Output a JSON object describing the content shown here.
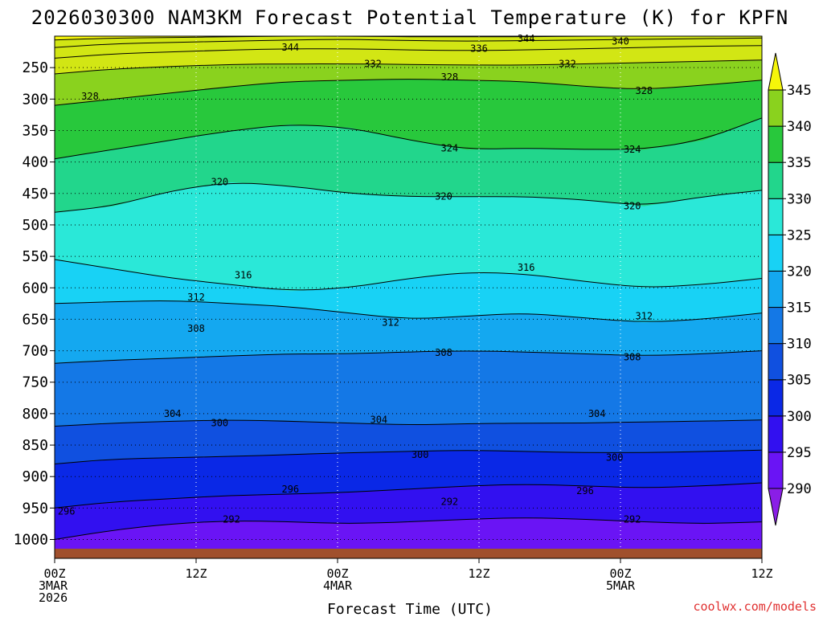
{
  "chart_data": {
    "type": "heatmap",
    "title": "2026030300 NAM3KM Forecast Potential Temperature (K) for KPFN",
    "xlabel": "Forecast Time (UTC)",
    "ylabel": "",
    "credit": "coolwx.com/models",
    "x_ticks": [
      {
        "hour": 0,
        "lines": [
          "00Z",
          "3MAR",
          "2026"
        ]
      },
      {
        "hour": 12,
        "lines": [
          "12Z"
        ]
      },
      {
        "hour": 24,
        "lines": [
          "00Z",
          "4MAR"
        ]
      },
      {
        "hour": 36,
        "lines": [
          "12Z"
        ]
      },
      {
        "hour": 48,
        "lines": [
          "00Z",
          "5MAR"
        ]
      },
      {
        "hour": 60,
        "lines": [
          "12Z"
        ]
      }
    ],
    "xlim": [
      0,
      60
    ],
    "y_ticks": [
      250,
      300,
      350,
      400,
      450,
      500,
      550,
      600,
      650,
      700,
      750,
      800,
      850,
      900,
      950,
      1000
    ],
    "ylim": [
      1030,
      200
    ],
    "colorbar": {
      "levels": [
        290,
        295,
        300,
        305,
        310,
        315,
        320,
        325,
        330,
        335,
        340,
        345
      ],
      "colors": [
        "#8a1ee6",
        "#6a14f5",
        "#3210f0",
        "#0a28e6",
        "#1050e0",
        "#1478e6",
        "#14a8f0",
        "#18d2f5",
        "#2ae8d8",
        "#22d68c",
        "#28c83c",
        "#8ad21e",
        "#d2e614",
        "#f5f50a"
      ],
      "labels": [
        "290",
        "295",
        "300",
        "305",
        "310",
        "315",
        "320",
        "325",
        "330",
        "335",
        "340",
        "345"
      ]
    },
    "series": [
      {
        "name": "292",
        "values": [
          1000,
          985,
          975,
          970,
          972,
          975,
          972,
          968,
          965,
          968,
          972,
          975,
          972
        ]
      },
      {
        "name": "296",
        "values": [
          950,
          940,
          935,
          930,
          928,
          925,
          920,
          915,
          912,
          915,
          918,
          915,
          910
        ]
      },
      {
        "name": "300",
        "values": [
          880,
          872,
          870,
          868,
          865,
          862,
          860,
          858,
          860,
          862,
          862,
          860,
          858
        ]
      },
      {
        "name": "304",
        "values": [
          820,
          815,
          812,
          810,
          812,
          815,
          818,
          816,
          815,
          815,
          813,
          812,
          810
        ]
      },
      {
        "name": "308",
        "values": [
          720,
          715,
          712,
          708,
          705,
          705,
          702,
          700,
          702,
          705,
          708,
          705,
          700
        ]
      },
      {
        "name": "312",
        "values": [
          625,
          622,
          620,
          625,
          630,
          640,
          650,
          645,
          640,
          648,
          655,
          650,
          640
        ]
      },
      {
        "name": "316",
        "values": [
          555,
          570,
          585,
          595,
          605,
          600,
          585,
          575,
          578,
          590,
          600,
          595,
          585
        ]
      },
      {
        "name": "320",
        "values": [
          480,
          470,
          445,
          432,
          438,
          450,
          455,
          455,
          455,
          460,
          470,
          455,
          445
        ]
      },
      {
        "name": "324",
        "values": [
          395,
          380,
          365,
          350,
          340,
          345,
          365,
          380,
          378,
          380,
          380,
          365,
          330
        ]
      },
      {
        "name": "328",
        "values": [
          310,
          300,
          290,
          280,
          272,
          270,
          268,
          270,
          272,
          280,
          285,
          278,
          270
        ]
      },
      {
        "name": "332",
        "values": [
          260,
          252,
          248,
          245,
          244,
          244,
          245,
          246,
          246,
          244,
          242,
          240,
          238
        ]
      },
      {
        "name": "336",
        "values": [
          235,
          228,
          225,
          222,
          220,
          220,
          222,
          223,
          222,
          220,
          218,
          216,
          215
        ]
      },
      {
        "name": "340",
        "values": [
          218,
          212,
          210,
          208,
          206,
          205,
          207,
          208,
          207,
          206,
          205,
          204,
          203
        ]
      },
      {
        "name": "344",
        "values": [
          206,
          203,
          202,
          201,
          200,
          200,
          201,
          201,
          201,
          200,
          200,
          200,
          200
        ]
      }
    ],
    "contour_hours": [
      0,
      5,
      10,
      15,
      20,
      25,
      30,
      35,
      40,
      45,
      50,
      55,
      60
    ],
    "contour_labels": [
      {
        "text": "292",
        "hour": 15,
        "level": 968
      },
      {
        "text": "292",
        "hour": 33.5,
        "level": 940
      },
      {
        "text": "292",
        "hour": 49,
        "level": 968
      },
      {
        "text": "296",
        "hour": 1,
        "level": 955
      },
      {
        "text": "296",
        "hour": 20,
        "level": 920
      },
      {
        "text": "296",
        "hour": 45,
        "level": 923
      },
      {
        "text": "300",
        "hour": 14,
        "level": 815
      },
      {
        "text": "300",
        "hour": 31,
        "level": 865
      },
      {
        "text": "300",
        "hour": 47.5,
        "level": 870
      },
      {
        "text": "304",
        "hour": 10,
        "level": 800
      },
      {
        "text": "304",
        "hour": 27.5,
        "level": 810
      },
      {
        "text": "304",
        "hour": 46,
        "level": 800
      },
      {
        "text": "308",
        "hour": 12,
        "level": 665
      },
      {
        "text": "308",
        "hour": 33,
        "level": 703
      },
      {
        "text": "308",
        "hour": 49,
        "level": 710
      },
      {
        "text": "312",
        "hour": 12,
        "level": 615
      },
      {
        "text": "312",
        "hour": 28.5,
        "level": 655
      },
      {
        "text": "312",
        "hour": 50,
        "level": 645
      },
      {
        "text": "316",
        "hour": 16,
        "level": 580
      },
      {
        "text": "316",
        "hour": 40,
        "level": 568
      },
      {
        "text": "320",
        "hour": 14,
        "level": 432
      },
      {
        "text": "320",
        "hour": 33,
        "level": 455
      },
      {
        "text": "320",
        "hour": 49,
        "level": 470
      },
      {
        "text": "324",
        "hour": 33.5,
        "level": 378
      },
      {
        "text": "324",
        "hour": 49,
        "level": 380
      },
      {
        "text": "328",
        "hour": 3,
        "level": 296
      },
      {
        "text": "328",
        "hour": 33.5,
        "level": 265
      },
      {
        "text": "328",
        "hour": 50,
        "level": 287
      },
      {
        "text": "332",
        "hour": 27,
        "level": 244
      },
      {
        "text": "332",
        "hour": 43.5,
        "level": 244
      },
      {
        "text": "336",
        "hour": 36,
        "level": 220
      },
      {
        "text": "340",
        "hour": 48,
        "level": 208
      },
      {
        "text": "344",
        "hour": 20,
        "level": 218
      },
      {
        "text": "344",
        "hour": 40,
        "level": 204
      }
    ]
  }
}
